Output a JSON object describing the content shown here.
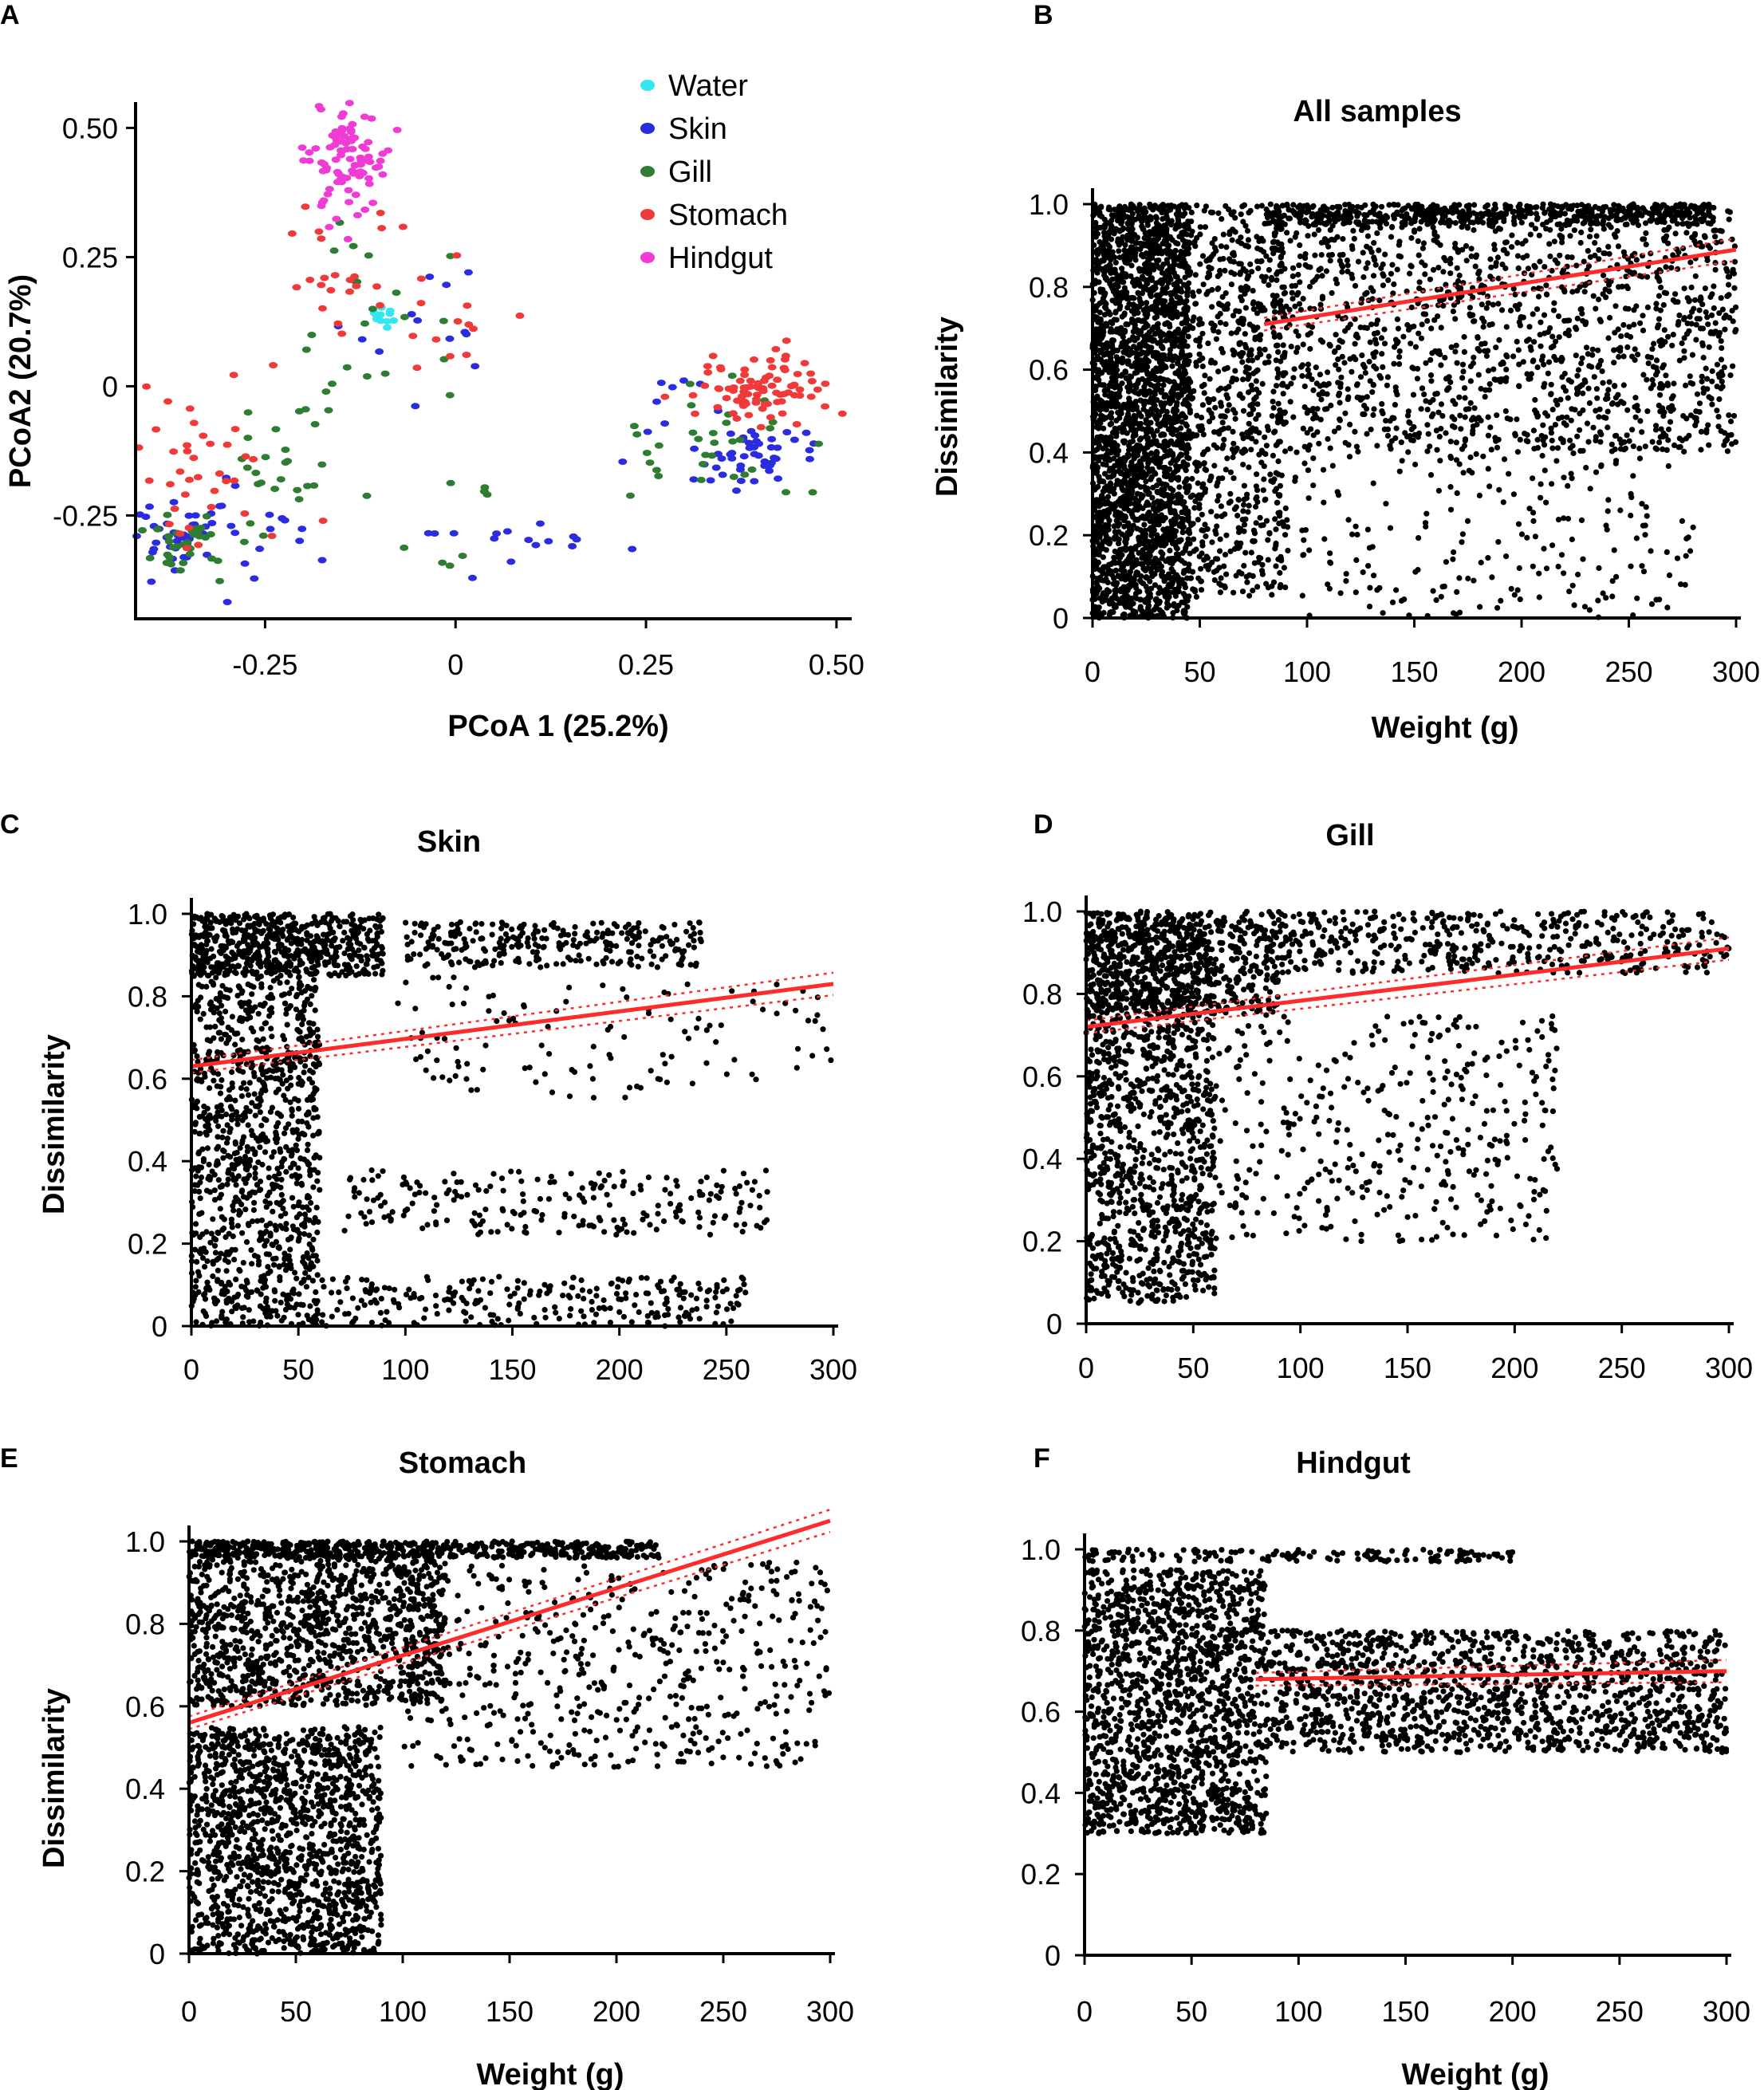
{
  "figure": {
    "panels": [
      "A",
      "B",
      "C",
      "D",
      "E",
      "F"
    ]
  },
  "chart_data": [
    {
      "id": "A",
      "type": "scatter",
      "title": "",
      "xlabel": "PCoA 1 (25.2%)",
      "ylabel": "PCoA2 (20.7%)",
      "xlim": [
        -0.42,
        0.52
      ],
      "ylim": [
        -0.45,
        0.55
      ],
      "xticks": [
        -0.25,
        0,
        0.25,
        0.5
      ],
      "xtick_labels": [
        "-0.25",
        "0",
        "0.25",
        "0.50"
      ],
      "yticks": [
        -0.25,
        0,
        0.25,
        0.5
      ],
      "ytick_labels": [
        "-0.25",
        "0",
        "0.25",
        "0.50"
      ],
      "legend_position": "top-right",
      "series": [
        {
          "name": "Water",
          "color": "#33e6f0",
          "clusters": [
            {
              "x": -0.095,
              "y": 0.13,
              "sx": 0.006,
              "sy": 0.012,
              "n": 12
            }
          ]
        },
        {
          "name": "Skin",
          "color": "#2b2be0",
          "clusters": [
            {
              "x": -0.37,
              "y": -0.29,
              "sx": 0.03,
              "sy": 0.035,
              "n": 45
            },
            {
              "x": -0.26,
              "y": -0.25,
              "sx": 0.07,
              "sy": 0.06,
              "n": 15
            },
            {
              "x": 0.4,
              "y": -0.14,
              "sx": 0.035,
              "sy": 0.03,
              "n": 45
            },
            {
              "x": 0.08,
              "y": -0.3,
              "sx": 0.08,
              "sy": 0.025,
              "n": 16
            },
            {
              "x": -0.05,
              "y": 0.12,
              "sx": 0.06,
              "sy": 0.06,
              "n": 14
            },
            {
              "x": 0.28,
              "y": -0.06,
              "sx": 0.04,
              "sy": 0.05,
              "n": 10
            }
          ]
        },
        {
          "name": "Gill",
          "color": "#2e7d32",
          "clusters": [
            {
              "x": -0.36,
              "y": -0.3,
              "sx": 0.035,
              "sy": 0.035,
              "n": 40
            },
            {
              "x": -0.24,
              "y": -0.16,
              "sx": 0.04,
              "sy": 0.07,
              "n": 22
            },
            {
              "x": 0.33,
              "y": -0.12,
              "sx": 0.06,
              "sy": 0.06,
              "n": 32
            },
            {
              "x": -0.12,
              "y": 0.08,
              "sx": 0.06,
              "sy": 0.1,
              "n": 22
            },
            {
              "x": 0.02,
              "y": -0.25,
              "sx": 0.05,
              "sy": 0.06,
              "n": 8
            }
          ]
        },
        {
          "name": "Stomach",
          "color": "#f03a3a",
          "clusters": [
            {
              "x": 0.41,
              "y": 0.0,
              "sx": 0.045,
              "sy": 0.035,
              "n": 85
            },
            {
              "x": -0.33,
              "y": -0.15,
              "sx": 0.05,
              "sy": 0.08,
              "n": 38
            },
            {
              "x": -0.12,
              "y": 0.2,
              "sx": 0.06,
              "sy": 0.08,
              "n": 26
            },
            {
              "x": 0.0,
              "y": 0.08,
              "sx": 0.05,
              "sy": 0.04,
              "n": 10
            }
          ]
        },
        {
          "name": "Hindgut",
          "color": "#f03cd4",
          "clusters": [
            {
              "x": -0.14,
              "y": 0.44,
              "sx": 0.025,
              "sy": 0.06,
              "n": 95
            }
          ]
        }
      ]
    },
    {
      "id": "B",
      "type": "scatter",
      "title": "All samples",
      "xlabel": "Weight (g)",
      "ylabel": "Dissimilarity",
      "xlim": [
        0,
        300
      ],
      "ylim": [
        0,
        1.0
      ],
      "xticks": [
        0,
        50,
        100,
        150,
        200,
        250,
        300
      ],
      "yticks": [
        0,
        0.2,
        0.4,
        0.6,
        0.8,
        1.0
      ],
      "ytick_labels": [
        "0",
        "0.2",
        "0.4",
        "0.6",
        "0.8",
        "1.0"
      ],
      "regression": {
        "x": [
          80,
          300
        ],
        "y": [
          0.71,
          0.89
        ],
        "color": "#ff2b2b"
      },
      "point_clusters": [
        {
          "x": [
            0,
            45
          ],
          "y": [
            0,
            1.0
          ],
          "n": 2600
        },
        {
          "x": [
            45,
            90
          ],
          "y": [
            0.05,
            1.0
          ],
          "n": 700
        },
        {
          "x": [
            85,
            300
          ],
          "y": [
            0.4,
            1.0
          ],
          "n": 1500
        },
        {
          "x": [
            80,
            290
          ],
          "y": [
            0.95,
            1.0
          ],
          "n": 500
        },
        {
          "x": [
            90,
            280
          ],
          "y": [
            0.0,
            0.4
          ],
          "n": 220
        }
      ]
    },
    {
      "id": "C",
      "type": "scatter",
      "title": "Skin",
      "xlabel": "",
      "ylabel": "Dissimilarity",
      "xlim": [
        0,
        300
      ],
      "ylim": [
        0,
        1.0
      ],
      "xticks": [
        0,
        50,
        100,
        150,
        200,
        250,
        300
      ],
      "yticks": [
        0,
        0.2,
        0.4,
        0.6,
        0.8,
        1.0
      ],
      "ytick_labels": [
        "0",
        "0.2",
        "0.4",
        "0.6",
        "0.8",
        "1.0"
      ],
      "regression": {
        "x": [
          0,
          300
        ],
        "y": [
          0.63,
          0.83
        ],
        "color": "#ff2b2b"
      },
      "point_clusters": [
        {
          "x": [
            0,
            60
          ],
          "y": [
            0.0,
            1.0
          ],
          "n": 1200
        },
        {
          "x": [
            0,
            90
          ],
          "y": [
            0.85,
            1.0
          ],
          "n": 450
        },
        {
          "x": [
            100,
            240
          ],
          "y": [
            0.87,
            0.98
          ],
          "n": 280
        },
        {
          "x": [
            70,
            270
          ],
          "y": [
            0.22,
            0.38
          ],
          "n": 220
        },
        {
          "x": [
            60,
            260
          ],
          "y": [
            0.0,
            0.12
          ],
          "n": 260
        },
        {
          "x": [
            90,
            300
          ],
          "y": [
            0.55,
            0.85
          ],
          "n": 120
        }
      ]
    },
    {
      "id": "D",
      "type": "scatter",
      "title": "Gill",
      "xlabel": "",
      "ylabel": "",
      "xlim": [
        0,
        300
      ],
      "ylim": [
        0,
        1.0
      ],
      "xticks": [
        0,
        50,
        100,
        150,
        200,
        250,
        300
      ],
      "yticks": [
        0,
        0.2,
        0.4,
        0.6,
        0.8,
        1.0
      ],
      "ytick_labels": [
        "0",
        "0.2",
        "0.4",
        "0.6",
        "0.8",
        "1.0"
      ],
      "regression": {
        "x": [
          0,
          300
        ],
        "y": [
          0.72,
          0.91
        ],
        "color": "#ff2b2b"
      },
      "point_clusters": [
        {
          "x": [
            0,
            60
          ],
          "y": [
            0.05,
            1.0
          ],
          "n": 1300
        },
        {
          "x": [
            0,
            90
          ],
          "y": [
            0.75,
            1.0
          ],
          "n": 550
        },
        {
          "x": [
            90,
            300
          ],
          "y": [
            0.85,
            1.0
          ],
          "n": 450
        },
        {
          "x": [
            60,
            220
          ],
          "y": [
            0.2,
            0.75
          ],
          "n": 380
        }
      ]
    },
    {
      "id": "E",
      "type": "scatter",
      "title": "Stomach",
      "xlabel": "Weight (g)",
      "ylabel": "Dissimilarity",
      "xlim": [
        0,
        300
      ],
      "ylim": [
        0,
        1.0
      ],
      "xticks": [
        0,
        50,
        100,
        150,
        200,
        250,
        300
      ],
      "yticks": [
        0,
        0.2,
        0.4,
        0.6,
        0.8,
        1.0
      ],
      "ytick_labels": [
        "0",
        "0.2",
        "0.4",
        "0.6",
        "0.8",
        "1.0"
      ],
      "regression": {
        "x": [
          0,
          300
        ],
        "y": [
          0.56,
          1.05
        ],
        "color": "#ff2b2b"
      },
      "point_clusters": [
        {
          "x": [
            0,
            90
          ],
          "y": [
            0.0,
            0.55
          ],
          "n": 1400
        },
        {
          "x": [
            0,
            120
          ],
          "y": [
            0.6,
            1.0
          ],
          "n": 1200
        },
        {
          "x": [
            0,
            220
          ],
          "y": [
            0.96,
            1.0
          ],
          "n": 500
        },
        {
          "x": [
            100,
            300
          ],
          "y": [
            0.45,
            0.95
          ],
          "n": 550
        }
      ]
    },
    {
      "id": "F",
      "type": "scatter",
      "title": "Hindgut",
      "xlabel": "Weight (g)",
      "ylabel": "",
      "xlim": [
        0,
        300
      ],
      "ylim": [
        0,
        1.0
      ],
      "xticks": [
        0,
        50,
        100,
        150,
        200,
        250,
        300
      ],
      "yticks": [
        0,
        0.2,
        0.4,
        0.6,
        0.8,
        1.0
      ],
      "ytick_labels": [
        "0",
        "0.2",
        "0.4",
        "0.6",
        "0.8",
        "1.0"
      ],
      "regression": {
        "x": [
          80,
          300
        ],
        "y": [
          0.68,
          0.7
        ],
        "color": "#ff2b2b"
      },
      "point_clusters": [
        {
          "x": [
            0,
            85
          ],
          "y": [
            0.3,
            0.95
          ],
          "n": 1500
        },
        {
          "x": [
            85,
            300
          ],
          "y": [
            0.5,
            0.8
          ],
          "n": 1300
        },
        {
          "x": [
            0,
            200
          ],
          "y": [
            0.97,
            1.0
          ],
          "n": 150
        }
      ]
    }
  ]
}
